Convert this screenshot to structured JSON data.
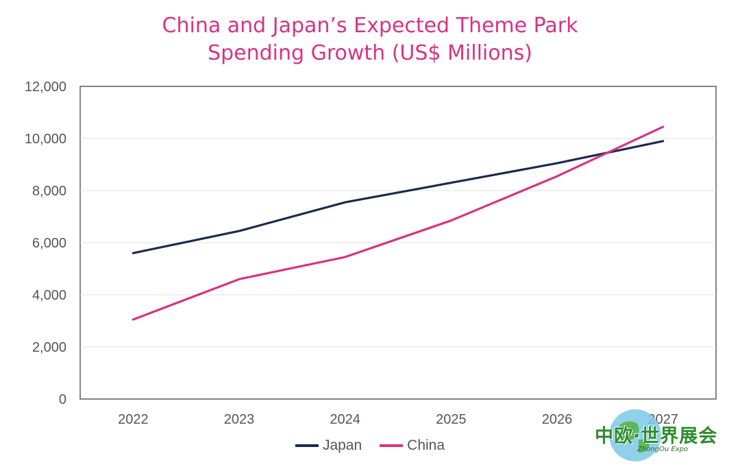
{
  "chart_data": {
    "type": "line",
    "title_line1": "China and Japan’s Expected Theme Park",
    "title_line2": "Spending Growth (US$ Millions)",
    "categories": [
      "2022",
      "2023",
      "2024",
      "2025",
      "2026",
      "2027"
    ],
    "y_ticks": [
      "0",
      "2,000",
      "4,000",
      "6,000",
      "8,000",
      "10,000",
      "12,000"
    ],
    "ylim": [
      0,
      12000
    ],
    "grid": true,
    "legend_position": "bottom",
    "series": [
      {
        "name": "Japan",
        "color": "#1b2a4e",
        "values": [
          5600,
          6450,
          7550,
          8300,
          9050,
          9900
        ]
      },
      {
        "name": "China",
        "color": "#d63384",
        "values": [
          3050,
          4600,
          5450,
          6850,
          8550,
          10450
        ]
      }
    ]
  },
  "watermark": {
    "text": "中欧·世界展会",
    "subtext": "ZhongOu Expo"
  }
}
